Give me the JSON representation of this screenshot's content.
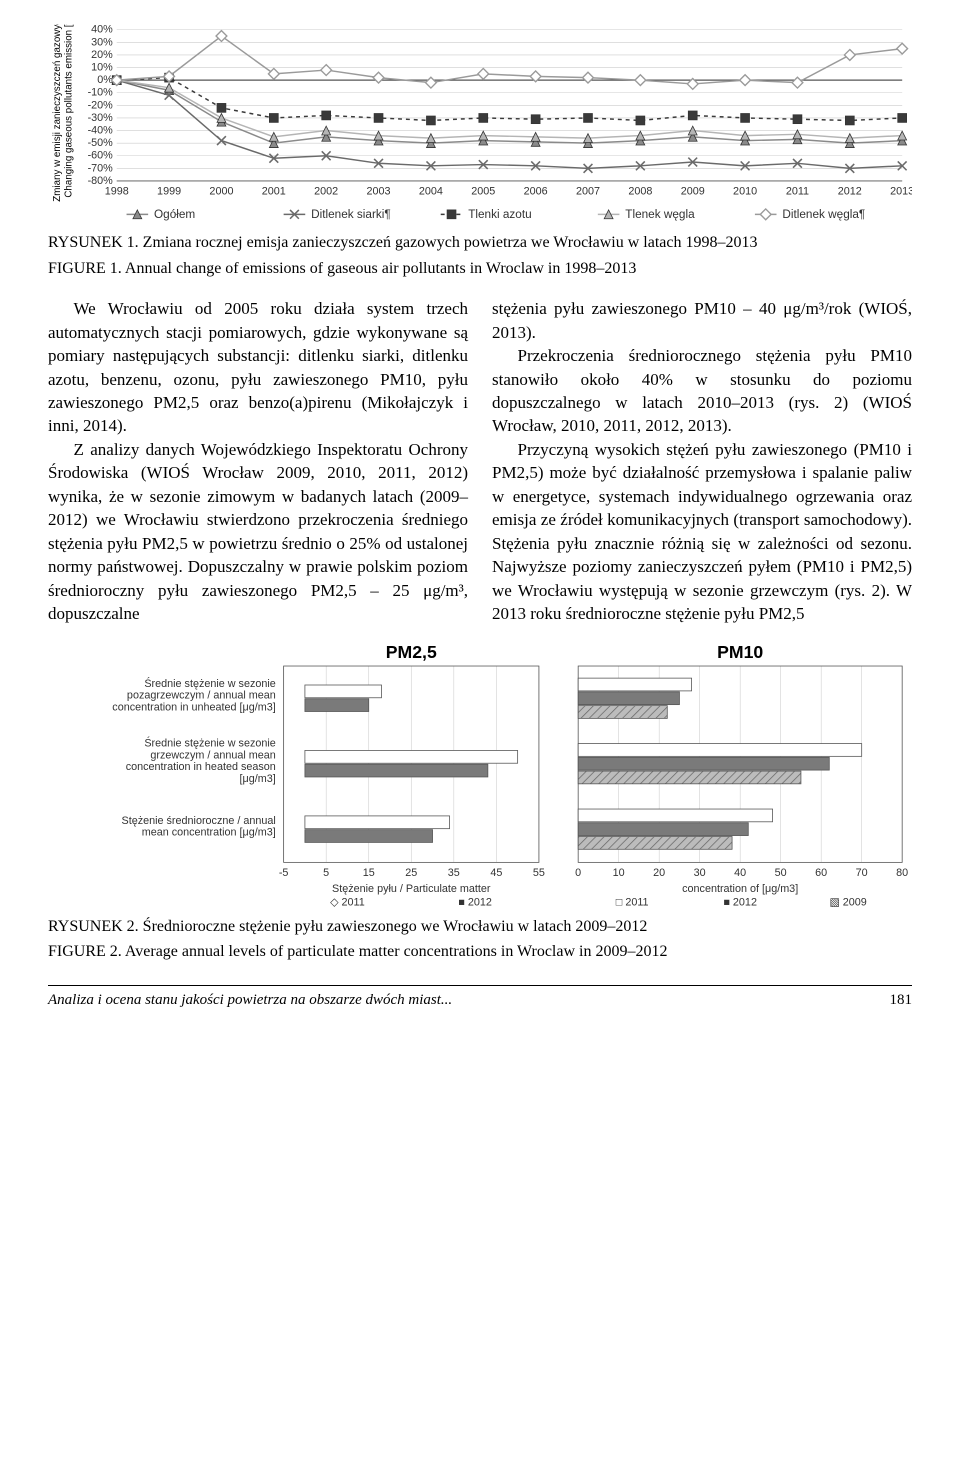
{
  "chart1": {
    "type": "line",
    "y_axis_label_pl": "Zmiany w emisji zanieczyszczeń gazowych /",
    "y_axis_label_en": "Changing gaseous pollutants emission [%]",
    "x_categories": [
      "1998",
      "1999",
      "2000",
      "2001",
      "2002",
      "2003",
      "2004",
      "2005",
      "2006",
      "2007",
      "2008",
      "2009",
      "2010",
      "2011",
      "2012",
      "2013"
    ],
    "y_ticks": [
      "40%",
      "30%",
      "20%",
      "10%",
      "0%",
      "-10%",
      "-20%",
      "-30%",
      "-40%",
      "-50%",
      "-60%",
      "-70%",
      "-80%"
    ],
    "ylim": [
      -80,
      40
    ],
    "series": [
      {
        "name": "Ogółem",
        "marker": "triangle",
        "color": "#8a8a8a",
        "dash": "none",
        "values": [
          0,
          -8,
          -33,
          -50,
          -45,
          -48,
          -50,
          -48,
          -49,
          -50,
          -48,
          -45,
          -48,
          -47,
          -50,
          -48
        ]
      },
      {
        "name": "Ditlenek siarki¶",
        "marker": "x",
        "color": "#6a6a6a",
        "dash": "none",
        "values": [
          0,
          -12,
          -48,
          -62,
          -60,
          -66,
          -68,
          -67,
          -68,
          -70,
          -68,
          -65,
          -68,
          -66,
          -70,
          -68
        ]
      },
      {
        "name": "Tlenki azotu",
        "marker": "square",
        "color": "#3a3a3a",
        "dash": "4,4",
        "values": [
          0,
          2,
          -22,
          -30,
          -28,
          -30,
          -32,
          -30,
          -31,
          -30,
          -32,
          -28,
          -30,
          -31,
          -32,
          -30
        ]
      },
      {
        "name": "Tlenek węgla",
        "marker": "triangle",
        "color": "#b5b5b5",
        "dash": "none",
        "values": [
          0,
          -6,
          -30,
          -45,
          -40,
          -44,
          -46,
          -44,
          -45,
          -46,
          -44,
          -40,
          -44,
          -43,
          -46,
          -44
        ]
      },
      {
        "name": "Ditlenek węgla¶",
        "marker": "diamond",
        "color": "#9a9a9a",
        "dash": "none",
        "values": [
          0,
          3,
          35,
          5,
          8,
          2,
          -2,
          5,
          3,
          2,
          0,
          -3,
          0,
          -2,
          20,
          25
        ]
      }
    ],
    "grid_color": "#cccccc",
    "axis_color": "#555555",
    "background": "#ffffff",
    "tick_fontsize": 11,
    "legend_fontsize": 12
  },
  "caption1_pl": "RYSUNEK 1. Zmiana rocznej emisja zanieczyszczeń gazowych powietrza we Wrocławiu w latach 1998–2013",
  "caption1_en": "FIGURE 1. Annual change of emissions of gaseous air pollutants in Wroclaw in 1998–2013",
  "body_left": "We Wrocławiu od 2005 roku działa system trzech automatycznych stacji pomiarowych, gdzie wykonywane są pomiary następujących substancji: ditlenku siarki, ditlenku azotu, benzenu, ozonu, pyłu zawieszonego PM10, pyłu zawieszonego PM2,5 oraz benzo(a)pirenu (Mikołajczyk i inni, 2014).",
  "body_left2": "Z analizy danych Wojewódzkiego Inspektoratu Ochrony Środowiska (WIOŚ Wrocław 2009, 2010, 2011, 2012) wynika, że w sezonie zimowym w badanych latach (2009–2012) we Wrocławiu stwierdzono przekroczenia średniego stężenia pyłu PM2,5 w powietrzu średnio o 25% od ustalonej normy państwowej. Dopuszczalny w prawie polskim poziom średnioroczny pyłu zawieszonego PM2,5 – 25 μg/m³, dopuszczalne",
  "body_right": "stężenia pyłu zawieszonego PM10 – 40 μg/m³/rok (WIOŚ, 2013).",
  "body_right2": "Przekroczenia średniorocznego stężenia pyłu PM10 stanowiło około 40% w stosunku do poziomu dopuszczalnego w latach 2010–2013 (rys. 2) (WIOŚ Wrocław, 2010, 2011, 2012, 2013).",
  "body_right3": "Przyczyną wysokich stężeń pyłu zawieszonego (PM10 i PM2,5) może być działalność przemysłowa i spalanie paliw w energetyce, systemach indywidualnego ogrzewania oraz emisja ze źródeł komunikacyjnych (transport samochodowy). Stężenia pyłu znacznie różnią się w zależności od sezonu. Najwyższe poziomy zanieczyszczeń pyłem (PM10 i PM2,5) we Wrocławiu występują w sezonie grzewczym (rys. 2). W 2013 roku średnioroczne stężenie pyłu PM2,5",
  "chart2": {
    "type": "grouped-bar",
    "left": {
      "title": "PM2,5",
      "title_fontsize": 18,
      "title_weight": "bold",
      "categories": [
        "Średnie stężenie w sezonie pozagrzewczym / annual mean concentration in unheated [μg/m3]",
        "Średnie stężenie w sezonie grzewczym / annual mean concentration in heated season [μg/m3]",
        "Stężenie  średnioroczne / annual mean concentration [μg/m3]"
      ],
      "x_ticks": [
        -5,
        5,
        15,
        25,
        35,
        45,
        55
      ],
      "x_label": "Stężenie pyłu / Particulate matter",
      "series_by_year": {
        "2011": [
          18,
          50,
          34
        ],
        "2012": [
          15,
          43,
          30
        ]
      },
      "legend": [
        "◇ 2011",
        "■ 2012"
      ]
    },
    "right": {
      "title": "PM10",
      "title_fontsize": 18,
      "title_weight": "bold",
      "x_ticks": [
        0,
        10,
        20,
        30,
        40,
        50,
        60,
        70,
        80
      ],
      "x_label": "concentration of [μg/m3]",
      "series_by_year": {
        "2011": [
          28,
          70,
          48
        ],
        "2012": [
          25,
          62,
          42
        ],
        "2009": [
          22,
          55,
          38
        ]
      },
      "legend": [
        "□ 2011",
        "■ 2012",
        "▧ 2009"
      ]
    },
    "bar_fill_2012": "#7a7a7a",
    "bar_fill_2011": "#ffffff",
    "bar_fill_2009": "#bcbcbc",
    "bar_stroke": "#555555",
    "grid_color": "#d0d0d0",
    "axis_color": "#555555",
    "label_fontsize": 11,
    "tick_fontsize": 11
  },
  "caption2_pl": "RYSUNEK 2. Średnioroczne stężenie pyłu zawieszonego we Wrocławiu w latach 2009–2012",
  "caption2_en": "FIGURE 2. Average annual levels of particulate matter concentrations in Wroclaw in 2009–2012",
  "footer_text": "Analiza i ocena stanu jakości powietrza na obszarze dwóch miast...",
  "footer_page": "181"
}
